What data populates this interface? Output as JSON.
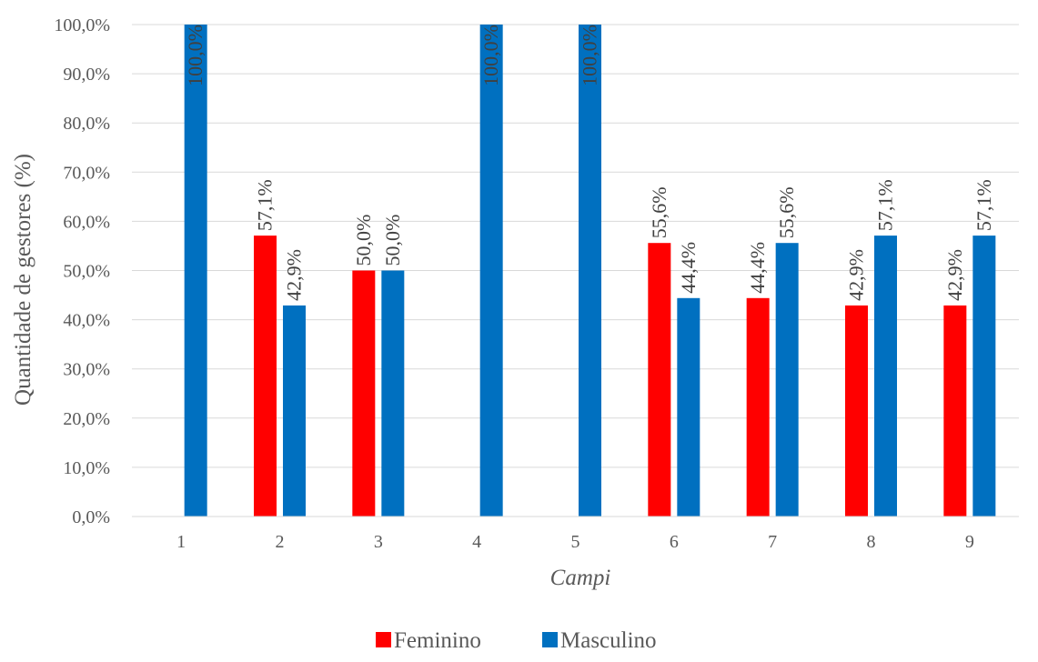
{
  "chart_data": {
    "type": "bar",
    "title": "",
    "xlabel": "Campi",
    "ylabel": "Quantidade de gestores (%)",
    "ylim": [
      0,
      100
    ],
    "yticks": [
      "0,0%",
      "10,0%",
      "20,0%",
      "30,0%",
      "40,0%",
      "50,0%",
      "60,0%",
      "70,0%",
      "80,0%",
      "90,0%",
      "100,0%"
    ],
    "categories": [
      "1",
      "2",
      "3",
      "4",
      "5",
      "6",
      "7",
      "8",
      "9"
    ],
    "series": [
      {
        "name": "Feminino",
        "color": "#ff0000",
        "values": [
          null,
          57.1,
          50.0,
          null,
          null,
          55.6,
          44.4,
          42.9,
          42.9
        ],
        "labels": [
          "",
          "57,1%",
          "50,0%",
          "",
          "",
          "55,6%",
          "44,4%",
          "42,9%",
          "42,9%"
        ]
      },
      {
        "name": "Masculino",
        "color": "#0070c0",
        "values": [
          100.0,
          42.9,
          50.0,
          100.0,
          100.0,
          44.4,
          55.6,
          57.1,
          57.1
        ],
        "labels": [
          "100,0%",
          "42,9%",
          "50,0%",
          "100,0%",
          "100,0%",
          "44,4%",
          "55,6%",
          "57,1%",
          "57,1%"
        ]
      }
    ],
    "grid": true,
    "legend_position": "bottom-center",
    "data_label_color": "#404040"
  }
}
